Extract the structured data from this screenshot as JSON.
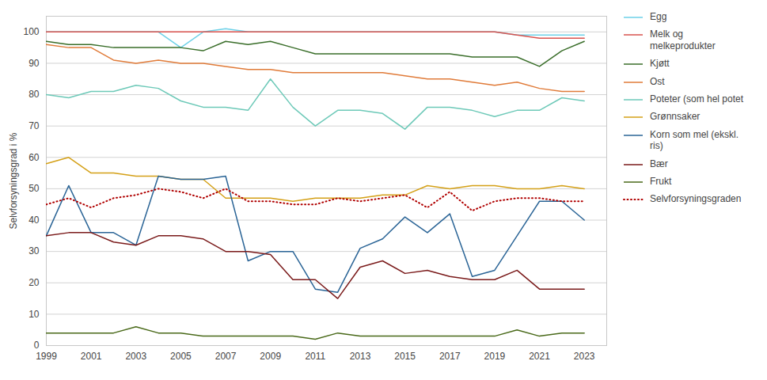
{
  "chart_data": {
    "type": "line",
    "x": [
      1999,
      2000,
      2001,
      2002,
      2003,
      2004,
      2005,
      2006,
      2007,
      2008,
      2009,
      2010,
      2011,
      2012,
      2013,
      2014,
      2015,
      2016,
      2017,
      2018,
      2019,
      2020,
      2021,
      2022,
      2023
    ],
    "series": [
      {
        "name": "Egg",
        "color": "#6dd1e8",
        "line_style": "solid",
        "values": [
          100,
          100,
          100,
          100,
          100,
          100,
          95,
          100,
          101,
          100,
          100,
          100,
          100,
          100,
          100,
          100,
          100,
          100,
          100,
          100,
          100,
          99,
          99,
          99,
          99
        ]
      },
      {
        "name": "Melk og\nmelkeprodukter",
        "color": "#d9534f",
        "line_style": "solid",
        "values": [
          100,
          100,
          100,
          100,
          100,
          100,
          100,
          100,
          100,
          100,
          100,
          100,
          100,
          100,
          100,
          100,
          100,
          100,
          100,
          100,
          100,
          99,
          98,
          98,
          98
        ]
      },
      {
        "name": "Kjøtt",
        "color": "#3a6e2a",
        "line_style": "solid",
        "values": [
          97,
          96,
          96,
          95,
          95,
          95,
          95,
          94,
          97,
          96,
          97,
          95,
          93,
          93,
          93,
          93,
          93,
          93,
          93,
          92,
          92,
          92,
          89,
          94,
          97
        ]
      },
      {
        "name": "Ost",
        "color": "#e07b39",
        "line_style": "solid",
        "values": [
          96,
          95,
          95,
          91,
          90,
          91,
          90,
          90,
          89,
          88,
          88,
          87,
          87,
          87,
          87,
          87,
          86,
          85,
          85,
          84,
          83,
          84,
          82,
          81,
          81
        ]
      },
      {
        "name": "Poteter (som hel potet",
        "color": "#6dc9b8",
        "line_style": "solid",
        "values": [
          80,
          79,
          81,
          81,
          83,
          82,
          78,
          76,
          76,
          75,
          85,
          76,
          70,
          75,
          75,
          74,
          69,
          76,
          76,
          75,
          73,
          75,
          75,
          79,
          78
        ]
      },
      {
        "name": "Grønnsaker",
        "color": "#d4a017",
        "line_style": "solid",
        "values": [
          58,
          60,
          55,
          55,
          54,
          54,
          53,
          53,
          47,
          47,
          47,
          46,
          47,
          47,
          47,
          48,
          48,
          51,
          50,
          51,
          51,
          50,
          50,
          51,
          50
        ]
      },
      {
        "name": "Korn som mel (ekskl.\nris)",
        "color": "#2a6496",
        "line_style": "solid",
        "values": [
          35,
          51,
          36,
          36,
          32,
          54,
          53,
          53,
          54,
          27,
          30,
          30,
          18,
          17,
          31,
          34,
          41,
          36,
          42,
          22,
          24,
          35,
          46,
          46,
          40
        ]
      },
      {
        "name": "Bær",
        "color": "#7a1a1a",
        "line_style": "solid",
        "values": [
          35,
          36,
          36,
          33,
          32,
          35,
          35,
          34,
          30,
          30,
          29,
          21,
          21,
          15,
          25,
          27,
          23,
          24,
          22,
          21,
          21,
          24,
          18,
          18,
          18
        ]
      },
      {
        "name": "Frukt",
        "color": "#4a6a1a",
        "line_style": "solid",
        "values": [
          4,
          4,
          4,
          4,
          6,
          4,
          4,
          3,
          3,
          3,
          3,
          3,
          2,
          4,
          3,
          3,
          3,
          3,
          3,
          3,
          3,
          5,
          3,
          4,
          4
        ]
      },
      {
        "name": "Selvforsyningsgraden",
        "color": "#b00000",
        "line_style": "dotted",
        "values": [
          45,
          47,
          44,
          47,
          48,
          50,
          49,
          47,
          50,
          46,
          46,
          45,
          45,
          47,
          46,
          47,
          48,
          44,
          49,
          43,
          46,
          47,
          47,
          46,
          46
        ]
      }
    ],
    "ylabel": "Selvforsyningsgrad i %",
    "ylim": [
      0,
      105
    ],
    "yticks": [
      0,
      10,
      20,
      30,
      40,
      50,
      60,
      70,
      80,
      90,
      100
    ],
    "xlim": [
      1999,
      2024
    ],
    "xticks": [
      1999,
      2001,
      2003,
      2005,
      2007,
      2009,
      2011,
      2013,
      2015,
      2017,
      2019,
      2021,
      2023
    ],
    "grid": "y",
    "legend": "right"
  }
}
